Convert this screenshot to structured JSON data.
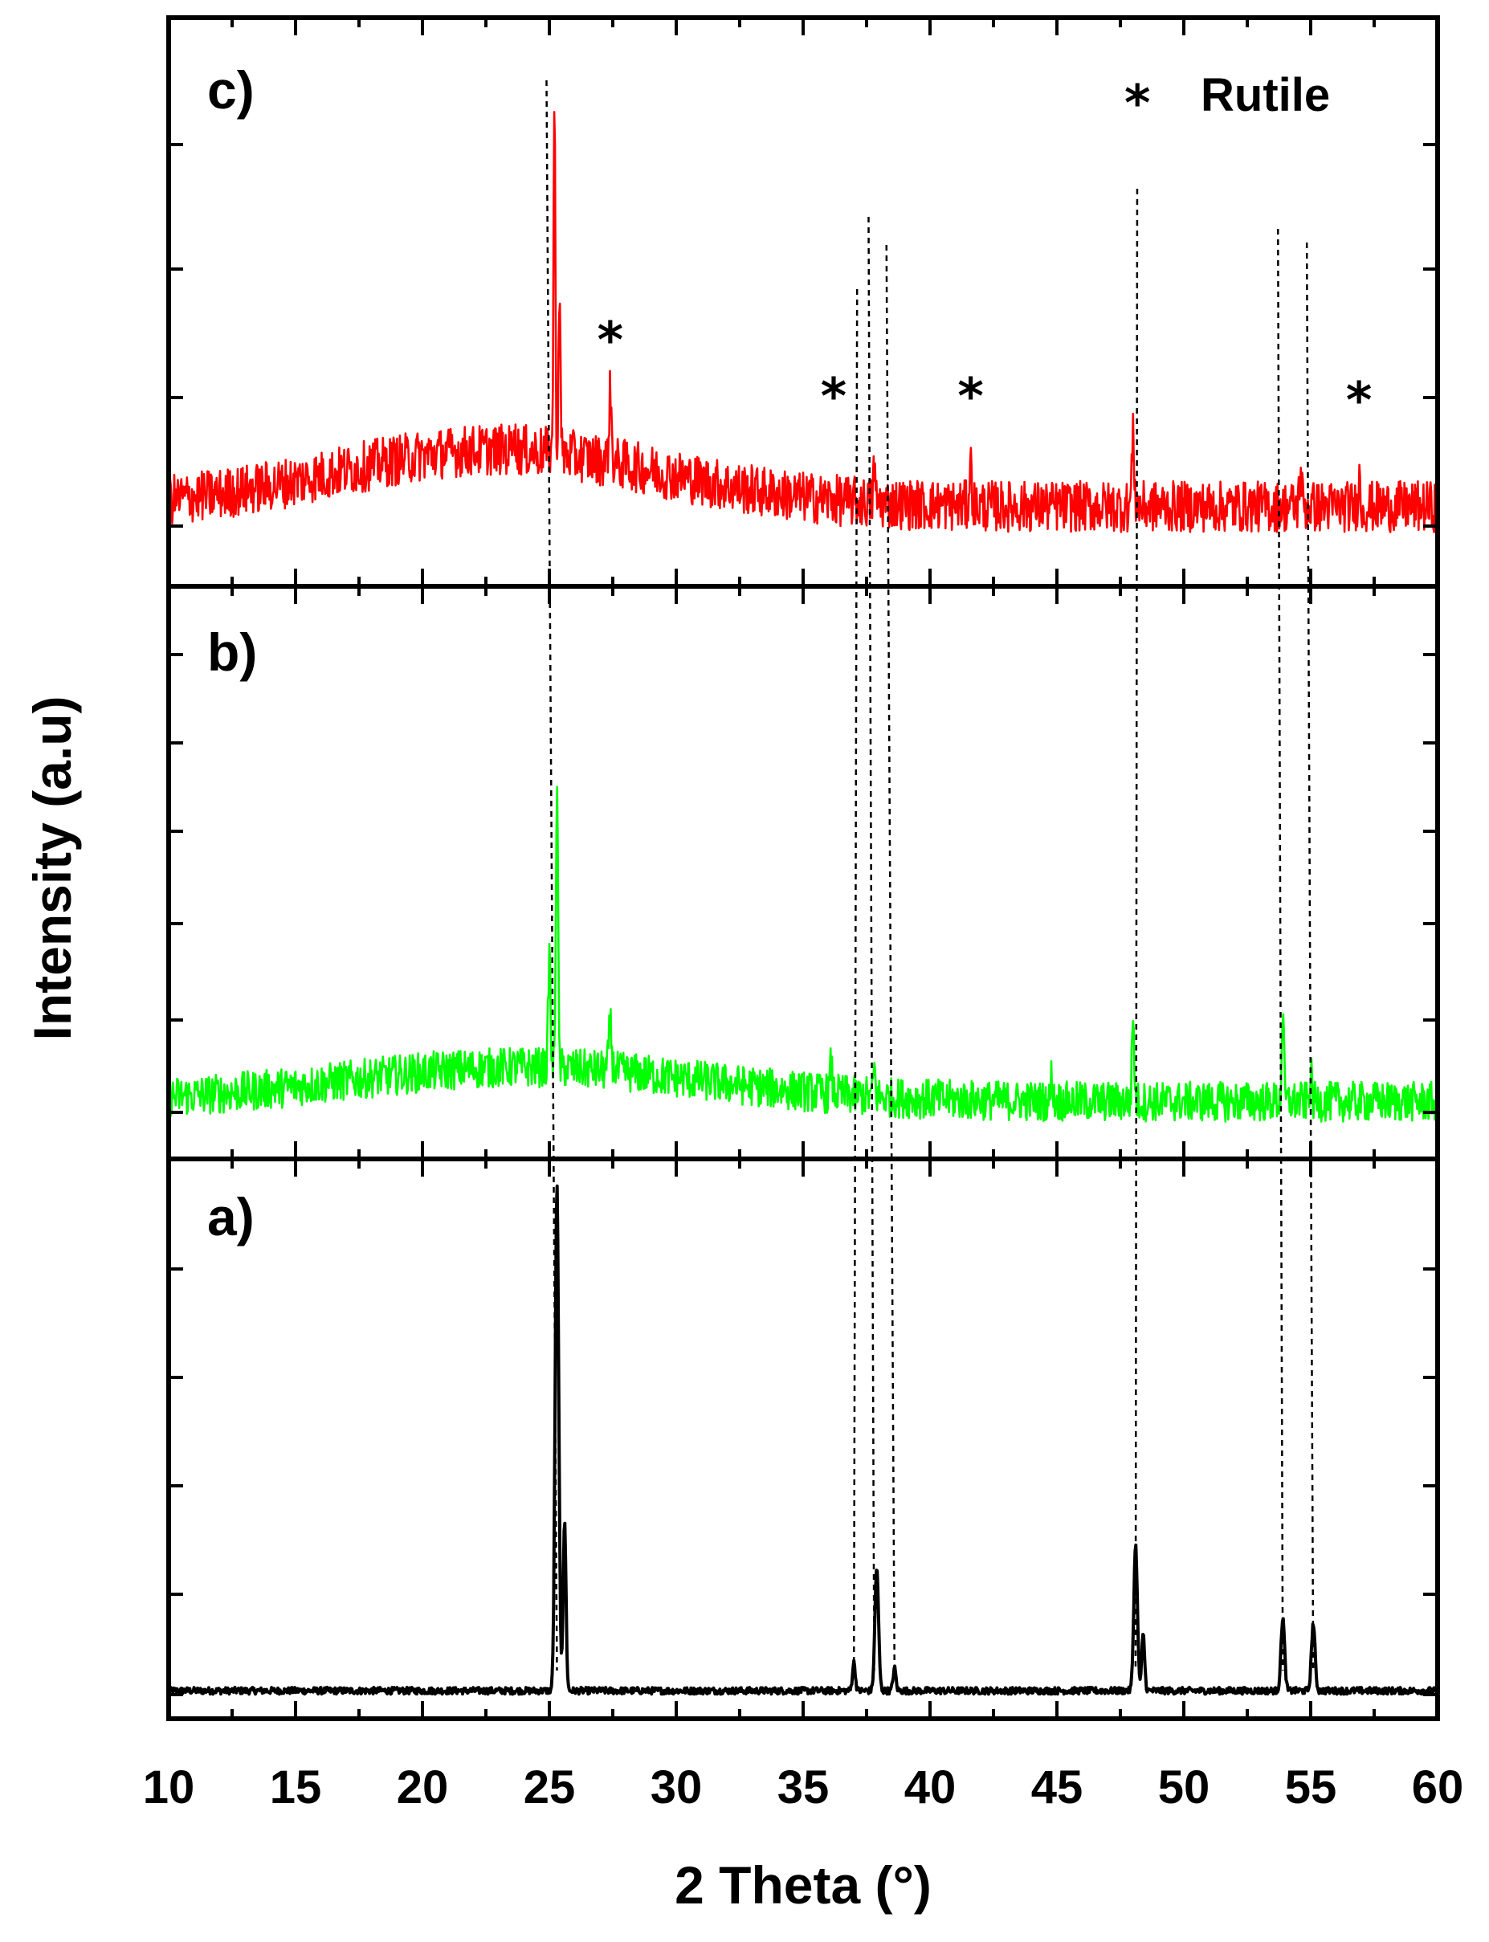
{
  "chart_data": {
    "type": "line",
    "title": "",
    "xlabel": "2 Theta (°)",
    "ylabel": "Intensity (a.u)",
    "xlim": [
      10,
      60
    ],
    "xticks": [
      "10",
      "15",
      "20",
      "25",
      "30",
      "35",
      "40",
      "45",
      "50",
      "55",
      "60"
    ],
    "panels": [
      {
        "label": "a)",
        "color": "#000000",
        "baseline": 0.05,
        "noise": 0.006,
        "hump": {
          "center": 25,
          "width": 8,
          "height": 0.0
        },
        "peaks": [
          {
            "x": 25.3,
            "h": 0.9,
            "w": 0.1
          },
          {
            "x": 25.6,
            "h": 0.3,
            "w": 0.08
          },
          {
            "x": 37.0,
            "h": 0.05,
            "w": 0.08
          },
          {
            "x": 37.9,
            "h": 0.22,
            "w": 0.1
          },
          {
            "x": 38.6,
            "h": 0.04,
            "w": 0.08
          },
          {
            "x": 48.1,
            "h": 0.26,
            "w": 0.1
          },
          {
            "x": 48.4,
            "h": 0.1,
            "w": 0.08
          },
          {
            "x": 53.9,
            "h": 0.13,
            "w": 0.1
          },
          {
            "x": 55.1,
            "h": 0.12,
            "w": 0.1
          }
        ]
      },
      {
        "label": "b)",
        "color": "#00ff00",
        "baseline": 0.1,
        "noise": 0.035,
        "hump": {
          "center": 24,
          "width": 10,
          "height": 0.06
        },
        "peaks": [
          {
            "x": 25.3,
            "h": 0.5,
            "w": 0.06
          },
          {
            "x": 25.0,
            "h": 0.2,
            "w": 0.06
          },
          {
            "x": 27.4,
            "h": 0.08,
            "w": 0.08
          },
          {
            "x": 36.1,
            "h": 0.05,
            "w": 0.06
          },
          {
            "x": 37.8,
            "h": 0.05,
            "w": 0.06
          },
          {
            "x": 44.8,
            "h": 0.05,
            "w": 0.05
          },
          {
            "x": 48.0,
            "h": 0.15,
            "w": 0.06
          },
          {
            "x": 53.9,
            "h": 0.16,
            "w": 0.06
          },
          {
            "x": 55.0,
            "h": 0.05,
            "w": 0.06
          }
        ]
      },
      {
        "label": "c)",
        "color": "#ff0000",
        "baseline": 0.14,
        "noise": 0.045,
        "hump": {
          "center": 23,
          "width": 9,
          "height": 0.1
        },
        "peaks": [
          {
            "x": 25.2,
            "h": 0.62,
            "w": 0.05
          },
          {
            "x": 25.4,
            "h": 0.3,
            "w": 0.05
          },
          {
            "x": 23.6,
            "h": 0.06,
            "w": 0.05
          },
          {
            "x": 27.4,
            "h": 0.12,
            "w": 0.07
          },
          {
            "x": 37.8,
            "h": 0.07,
            "w": 0.05
          },
          {
            "x": 41.6,
            "h": 0.07,
            "w": 0.07
          },
          {
            "x": 48.0,
            "h": 0.12,
            "w": 0.07
          },
          {
            "x": 54.6,
            "h": 0.06,
            "w": 0.07
          },
          {
            "x": 56.9,
            "h": 0.06,
            "w": 0.05
          }
        ]
      }
    ],
    "rutile_markers": [
      27.4,
      36.2,
      41.6,
      56.9
    ],
    "reference_lines": [
      25.3,
      37.0,
      37.8,
      38.6,
      48.1,
      53.9,
      55.1
    ],
    "legend": {
      "symbol": "*",
      "text": "Rutile",
      "position": "top-right"
    }
  }
}
